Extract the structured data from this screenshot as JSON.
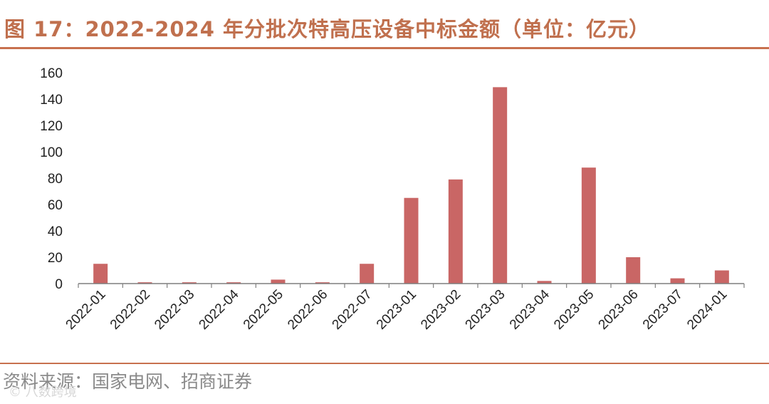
{
  "header": {
    "title": "图 17：2022-2024 年分批次特高压设备中标金额（单位：亿元）"
  },
  "footer": {
    "source": "资料来源：国家电网、招商证券",
    "watermark": "© 八数跨境"
  },
  "colors": {
    "accent": "#c8714f",
    "bar": "#c96665",
    "text": "#222222"
  },
  "chart_data": {
    "type": "bar",
    "categories": [
      "2022-01",
      "2022-02",
      "2022-03",
      "2022-04",
      "2022-05",
      "2022-06",
      "2022-07",
      "2023-01",
      "2023-02",
      "2023-03",
      "2023-04",
      "2023-05",
      "2023-06",
      "2023-07",
      "2024-01"
    ],
    "values": [
      15,
      1,
      1,
      1,
      3,
      1,
      15,
      65,
      79,
      149,
      2,
      88,
      20,
      4,
      10
    ],
    "title": "图 17：2022-2024 年分批次特高压设备中标金额（单位：亿元）",
    "xlabel": "",
    "ylabel": "",
    "ylim": [
      0,
      160
    ],
    "yticks": [
      0,
      20,
      40,
      60,
      80,
      100,
      120,
      140,
      160
    ],
    "grid": false,
    "legend": "none"
  }
}
